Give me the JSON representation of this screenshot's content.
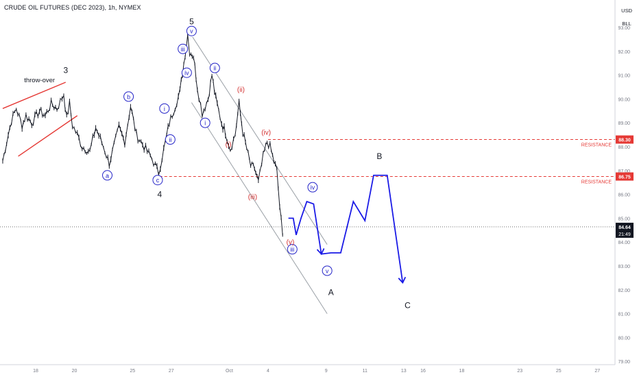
{
  "header": {
    "title": "CRUDE OIL FUTURES (DEC 2023), 1h, NYMEX",
    "currency": "USD",
    "unit": "BLL"
  },
  "colors": {
    "candle": "#131722",
    "projection": "#1a1ae6",
    "resistance": "#e53935",
    "wedge": "#e53935",
    "channel": "#9aa0a6",
    "label_blue": "#2424c8",
    "label_red": "#d32f2f"
  },
  "chart_data": {
    "type": "candlestick",
    "title": "CRUDE OIL FUTURES (DEC 2023), 1h, NYMEX",
    "y_axis": {
      "min": 79,
      "max": 93,
      "ticks": [
        "79.00",
        "80.00",
        "81.00",
        "82.00",
        "83.00",
        "84.00",
        "85.00",
        "86.00",
        "87.00",
        "88.00",
        "89.00",
        "90.00",
        "91.00",
        "92.00",
        "93.00"
      ]
    },
    "x_ticks": [
      {
        "label": "18",
        "pos": 0.0
      },
      {
        "label": "20",
        "pos": 2.0
      },
      {
        "label": "25",
        "pos": 5.0
      },
      {
        "label": "27",
        "pos": 7.0
      },
      {
        "label": "Oct",
        "pos": 10.0
      },
      {
        "label": "4",
        "pos": 12.0
      },
      {
        "label": "9",
        "pos": 15.0
      },
      {
        "label": "11",
        "pos": 17.0
      },
      {
        "label": "13",
        "pos": 19.0
      },
      {
        "label": "16",
        "pos": 20.0
      },
      {
        "label": "18",
        "pos": 22.0
      },
      {
        "label": "23",
        "pos": 25.0
      },
      {
        "label": "25",
        "pos": 27.0
      },
      {
        "label": "27",
        "pos": 29.0
      }
    ],
    "price_path": [
      [
        -1.7,
        87.4
      ],
      [
        -1.5,
        88.2
      ],
      [
        -1.25,
        89.1
      ],
      [
        -1.0,
        89.6
      ],
      [
        -0.7,
        88.9
      ],
      [
        -0.5,
        89.3
      ],
      [
        -0.2,
        89.0
      ],
      [
        0.2,
        89.5
      ],
      [
        0.5,
        89.3
      ],
      [
        0.8,
        89.8
      ],
      [
        1.1,
        89.6
      ],
      [
        1.45,
        90.2
      ],
      [
        1.6,
        89.2
      ],
      [
        1.75,
        89.8
      ],
      [
        1.9,
        88.9
      ],
      [
        2.15,
        88.5
      ],
      [
        2.4,
        88.0
      ],
      [
        2.8,
        87.8
      ],
      [
        3.1,
        88.8
      ],
      [
        3.5,
        88.0
      ],
      [
        3.8,
        87.3
      ],
      [
        4.3,
        88.8
      ],
      [
        4.6,
        88.2
      ],
      [
        4.9,
        89.7
      ],
      [
        5.2,
        88.5
      ],
      [
        5.6,
        88.0
      ],
      [
        6.0,
        87.5
      ],
      [
        6.35,
        86.9
      ],
      [
        6.7,
        88.2
      ],
      [
        6.9,
        89.0
      ],
      [
        7.2,
        89.7
      ],
      [
        7.45,
        90.3
      ],
      [
        7.65,
        91.5
      ],
      [
        7.85,
        92.7
      ],
      [
        7.95,
        92.0
      ],
      [
        8.15,
        91.8
      ],
      [
        8.35,
        90.5
      ],
      [
        8.6,
        89.4
      ],
      [
        8.9,
        90.0
      ],
      [
        9.1,
        91.0
      ],
      [
        9.3,
        90.0
      ],
      [
        9.6,
        89.0
      ],
      [
        9.8,
        88.6
      ],
      [
        10.05,
        87.9
      ],
      [
        10.3,
        88.5
      ],
      [
        10.5,
        89.8
      ],
      [
        10.7,
        88.6
      ],
      [
        10.9,
        87.9
      ],
      [
        11.1,
        87.2
      ],
      [
        11.3,
        87.1
      ],
      [
        11.5,
        86.5
      ],
      [
        11.75,
        87.6
      ],
      [
        11.95,
        88.2
      ],
      [
        12.1,
        88.0
      ],
      [
        12.3,
        87.4
      ],
      [
        12.45,
        87.0
      ],
      [
        12.6,
        85.5
      ],
      [
        12.75,
        84.3
      ]
    ],
    "projection_path": [
      [
        13.05,
        85.0
      ],
      [
        13.3,
        85.0
      ],
      [
        13.45,
        84.3
      ],
      [
        13.7,
        85.0
      ],
      [
        14.0,
        85.7
      ],
      [
        14.35,
        85.6
      ],
      [
        14.75,
        83.5
      ],
      [
        15.25,
        83.55
      ],
      [
        15.75,
        83.55
      ],
      [
        16.4,
        85.7
      ],
      [
        17.0,
        84.9
      ],
      [
        17.45,
        86.8
      ],
      [
        18.15,
        86.8
      ],
      [
        18.95,
        82.3
      ]
    ],
    "resistances": [
      {
        "value": 88.3,
        "value_label": "88.30",
        "text": "RESISTANCE",
        "x0": 12.0
      },
      {
        "value": 86.75,
        "value_label": "86.75",
        "text": "RESISTANCE",
        "x0": 6.4
      }
    ],
    "last_price": {
      "value": 84.64,
      "label": "84.64",
      "countdown": "21:49"
    },
    "wave_labels": [
      {
        "text": "3",
        "x": 1.55,
        "y": 91.2,
        "style": "plain"
      },
      {
        "text": "4",
        "x": 6.4,
        "y": 86.0,
        "style": "plain"
      },
      {
        "text": "5",
        "x": 8.05,
        "y": 93.25,
        "style": "plain"
      },
      {
        "text": "A",
        "x": 15.25,
        "y": 81.9,
        "style": "plain"
      },
      {
        "text": "B",
        "x": 17.75,
        "y": 87.6,
        "style": "plain"
      },
      {
        "text": "C",
        "x": 19.2,
        "y": 81.35,
        "style": "plain"
      },
      {
        "text": "a",
        "x": 3.7,
        "y": 86.8,
        "style": "circle"
      },
      {
        "text": "b",
        "x": 4.8,
        "y": 90.1,
        "style": "circle"
      },
      {
        "text": "c",
        "x": 6.3,
        "y": 86.6,
        "style": "circle"
      },
      {
        "text": "i",
        "x": 6.65,
        "y": 89.6,
        "style": "circle"
      },
      {
        "text": "ii",
        "x": 6.95,
        "y": 88.3,
        "style": "circle"
      },
      {
        "text": "iii",
        "x": 7.6,
        "y": 92.1,
        "style": "circle"
      },
      {
        "text": "iv",
        "x": 7.8,
        "y": 91.1,
        "style": "circle"
      },
      {
        "text": "v",
        "x": 8.05,
        "y": 92.85,
        "style": "circle"
      },
      {
        "text": "i",
        "x": 8.75,
        "y": 89.0,
        "style": "circle"
      },
      {
        "text": "ii",
        "x": 9.25,
        "y": 91.3,
        "style": "circle"
      },
      {
        "text": "iii",
        "x": 13.25,
        "y": 83.7,
        "style": "circle"
      },
      {
        "text": "iv",
        "x": 14.3,
        "y": 86.3,
        "style": "circle"
      },
      {
        "text": "v",
        "x": 15.05,
        "y": 82.8,
        "style": "circle"
      },
      {
        "text": "(i)",
        "x": 9.95,
        "y": 88.1,
        "style": "red"
      },
      {
        "text": "(ii)",
        "x": 10.6,
        "y": 90.4,
        "style": "red"
      },
      {
        "text": "(iii)",
        "x": 11.2,
        "y": 85.9,
        "style": "red"
      },
      {
        "text": "(iv)",
        "x": 11.9,
        "y": 88.6,
        "style": "red"
      },
      {
        "text": "(v)",
        "x": 13.15,
        "y": 84.0,
        "style": "red"
      }
    ],
    "annotations": [
      {
        "text": "throw-over",
        "x": 0.2,
        "y": 90.7
      }
    ],
    "channel_upper": [
      [
        8.1,
        92.6
      ],
      [
        15.05,
        83.9
      ]
    ],
    "channel_lower": [
      [
        8.05,
        89.85
      ],
      [
        15.05,
        81.0
      ]
    ],
    "wedge_upper": [
      [
        -1.7,
        89.6
      ],
      [
        1.55,
        90.7
      ]
    ],
    "wedge_lower": [
      [
        -0.9,
        87.6
      ],
      [
        2.15,
        89.3
      ]
    ],
    "grid": false,
    "legend": "none"
  }
}
